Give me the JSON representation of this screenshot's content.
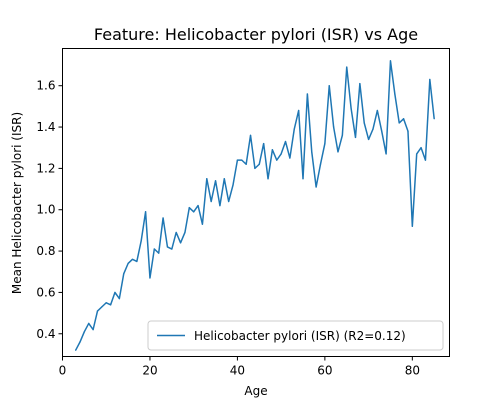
{
  "chart_data": {
    "type": "line",
    "title": "Feature: Helicobacter pylori (ISR) vs Age",
    "xlabel": "Age",
    "ylabel": "Mean Helicobacter pylori (ISR)",
    "xlim": [
      0,
      88.5
    ],
    "ylim": [
      0.29,
      1.78
    ],
    "xticks": [
      0,
      20,
      40,
      60,
      80
    ],
    "yticks": [
      0.4,
      0.6,
      0.8,
      1.0,
      1.2,
      1.4,
      1.6
    ],
    "ytick_labels": [
      "0.4",
      "0.6",
      "0.8",
      "1.0",
      "1.2",
      "1.4",
      "1.6"
    ],
    "grid": false,
    "legend_position": "lower right",
    "series": [
      {
        "name": "Helicobacter pylori (ISR) (R2=0.12)",
        "color": "#1f77b4",
        "x": [
          3,
          4,
          5,
          6,
          7,
          8,
          9,
          10,
          11,
          12,
          13,
          14,
          15,
          16,
          17,
          18,
          19,
          20,
          21,
          22,
          23,
          24,
          25,
          26,
          27,
          28,
          29,
          30,
          31,
          32,
          33,
          34,
          35,
          36,
          37,
          38,
          39,
          40,
          41,
          42,
          43,
          44,
          45,
          46,
          47,
          48,
          49,
          50,
          51,
          52,
          53,
          54,
          55,
          56,
          57,
          58,
          59,
          60,
          61,
          62,
          63,
          64,
          65,
          66,
          67,
          68,
          69,
          70,
          71,
          72,
          73,
          74,
          75,
          76,
          77,
          78,
          79,
          80,
          81,
          82,
          83,
          84,
          85
        ],
        "y": [
          0.32,
          0.36,
          0.41,
          0.45,
          0.42,
          0.51,
          0.53,
          0.55,
          0.54,
          0.6,
          0.57,
          0.69,
          0.74,
          0.76,
          0.75,
          0.85,
          0.99,
          0.67,
          0.81,
          0.79,
          0.96,
          0.82,
          0.81,
          0.89,
          0.84,
          0.89,
          1.01,
          0.99,
          1.02,
          0.93,
          1.15,
          1.04,
          1.14,
          1.02,
          1.15,
          1.04,
          1.12,
          1.24,
          1.24,
          1.22,
          1.36,
          1.2,
          1.22,
          1.32,
          1.15,
          1.29,
          1.24,
          1.27,
          1.33,
          1.25,
          1.39,
          1.48,
          1.15,
          1.56,
          1.28,
          1.11,
          1.22,
          1.32,
          1.6,
          1.4,
          1.28,
          1.36,
          1.69,
          1.49,
          1.35,
          1.61,
          1.42,
          1.34,
          1.39,
          1.48,
          1.38,
          1.27,
          1.72,
          1.56,
          1.42,
          1.44,
          1.38,
          0.92,
          1.27,
          1.3,
          1.24,
          1.63,
          1.44
        ]
      }
    ]
  }
}
